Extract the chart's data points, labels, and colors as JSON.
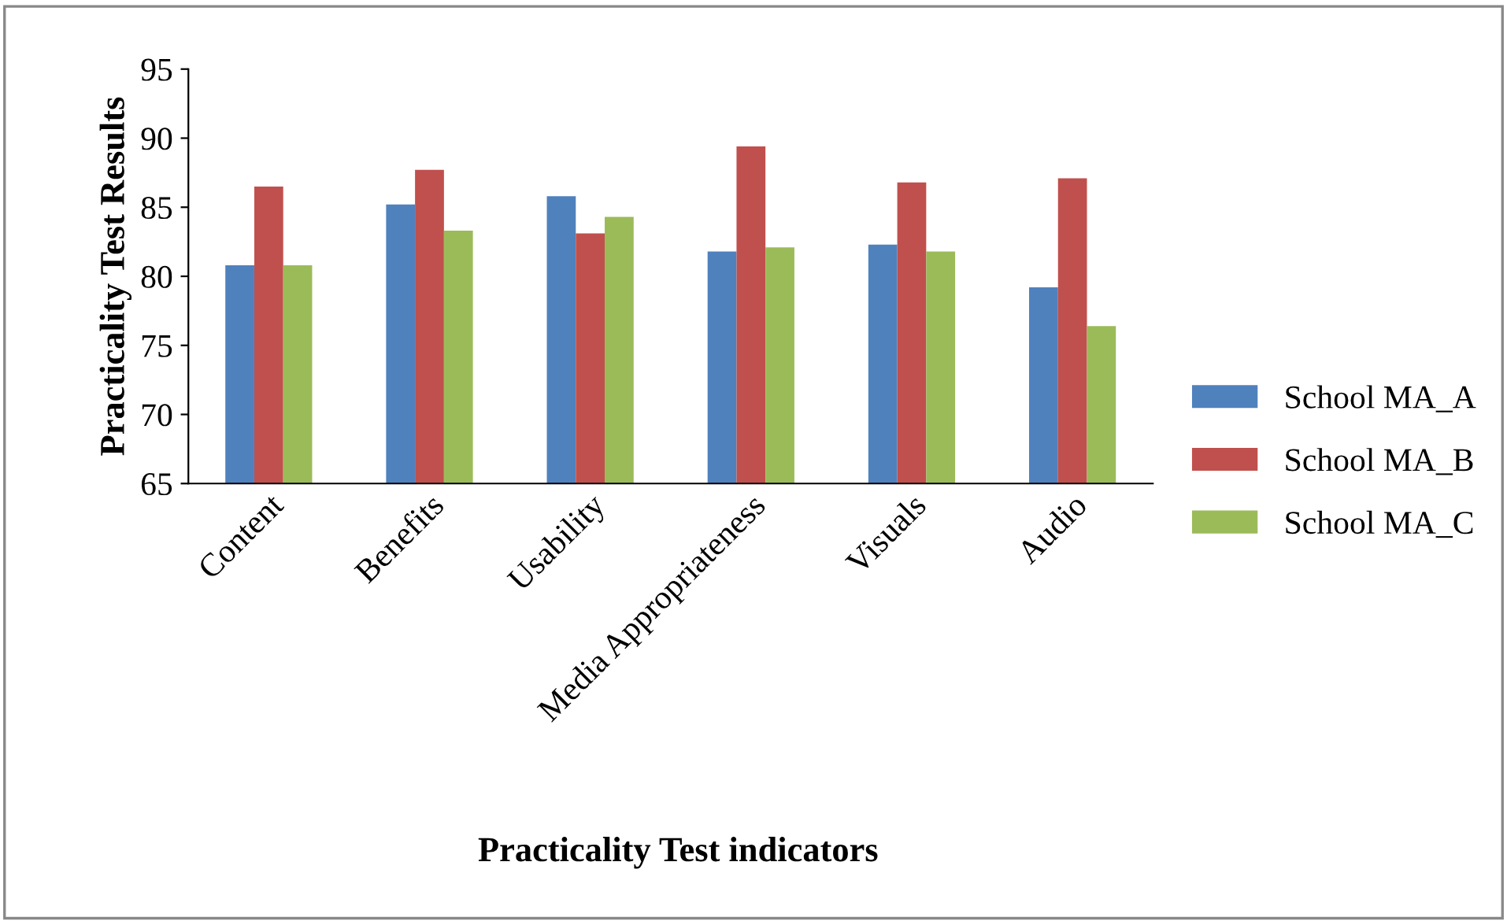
{
  "chart_data": {
    "type": "bar",
    "xlabel": "Practicality Test indicators",
    "ylabel": "Practicality Test Results",
    "categories": [
      "Content",
      "Benefits",
      "Usability",
      "Media Appropriateness",
      "Visuals",
      "Audio"
    ],
    "series": [
      {
        "name": "School MA_A",
        "color": "#4f81bd",
        "values": [
          80.8,
          85.2,
          85.8,
          81.8,
          82.3,
          79.2
        ]
      },
      {
        "name": "School MA_B",
        "color": "#c0504d",
        "values": [
          86.5,
          87.7,
          83.1,
          89.4,
          86.8,
          87.1
        ]
      },
      {
        "name": "School MA_C",
        "color": "#9bbb59",
        "values": [
          80.8,
          83.3,
          84.3,
          82.1,
          81.8,
          76.4
        ]
      }
    ],
    "ylim": [
      65,
      95
    ],
    "yticks": [
      65,
      70,
      75,
      80,
      85,
      90,
      95
    ],
    "grid": false,
    "legend": "right"
  }
}
